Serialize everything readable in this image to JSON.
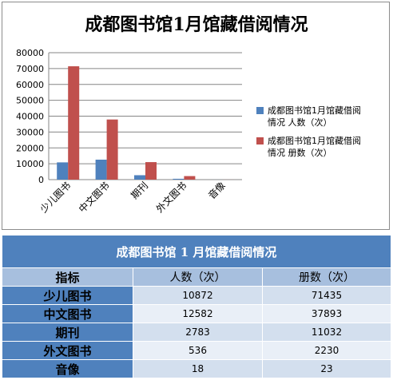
{
  "chart_data": {
    "type": "bar",
    "title": "成都图书馆1月馆藏借阅情况",
    "categories": [
      "少儿图书",
      "中文图书",
      "期刊",
      "外文图书",
      "音像"
    ],
    "series": [
      {
        "name": "成都图书馆1月馆藏借阅情况 人数（次）",
        "color": "#4f81bd",
        "values": [
          10872,
          12582,
          2783,
          536,
          18
        ]
      },
      {
        "name": "成都图书馆1月馆藏借阅情况 册数（次）",
        "color": "#c0504d",
        "values": [
          71435,
          37893,
          11032,
          2230,
          23
        ]
      }
    ],
    "ylim": [
      0,
      80000
    ],
    "yticks": [
      0,
      10000,
      20000,
      30000,
      40000,
      50000,
      60000,
      70000,
      80000
    ],
    "grid": true,
    "legend_position": "right"
  },
  "legend": {
    "items": [
      {
        "line1": "成都图书馆1月馆藏借阅",
        "line2": "情况 人数（次）"
      },
      {
        "line1": "成都图书馆1月馆藏借阅",
        "line2": "情况 册数（次）"
      }
    ]
  },
  "table": {
    "title": "成都图书馆 1 月馆藏借阅情况",
    "headers": [
      "指标",
      "人数（次）",
      "册数（次）"
    ],
    "rows": [
      {
        "label": "少儿图书",
        "people": "10872",
        "volumes": "71435"
      },
      {
        "label": "中文图书",
        "people": "12582",
        "volumes": "37893"
      },
      {
        "label": "期刊",
        "people": "2783",
        "volumes": "11032"
      },
      {
        "label": "外文图书",
        "people": "536",
        "volumes": "2230"
      },
      {
        "label": "音像",
        "people": "18",
        "volumes": "23"
      }
    ]
  }
}
